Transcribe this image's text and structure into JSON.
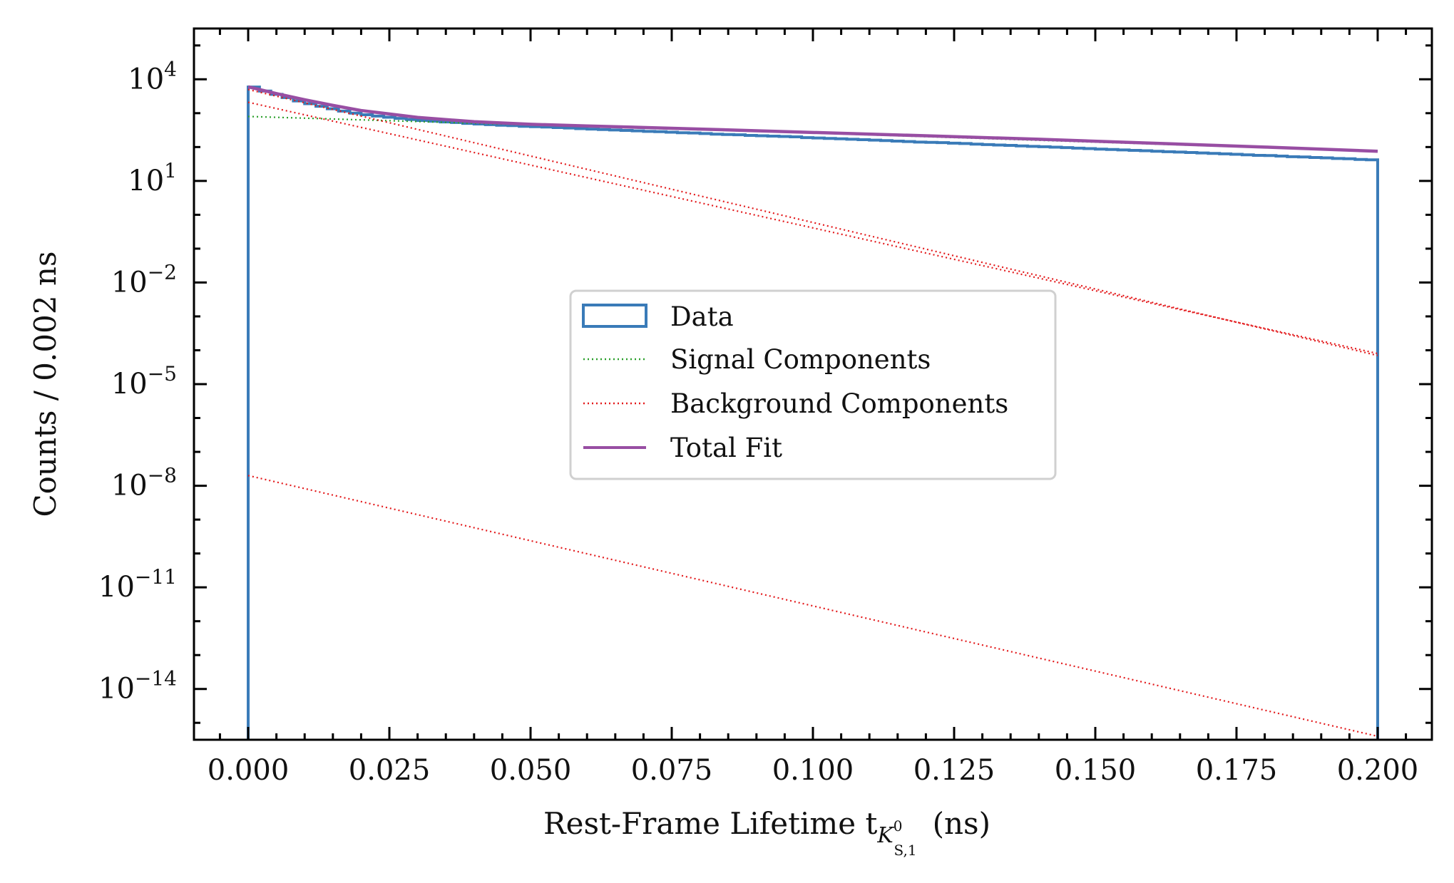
{
  "chart_data": {
    "type": "line",
    "xlabel": "Rest-Frame Lifetime t",
    "xlabel_sub": "K",
    "xlabel_subsub": "S,1",
    "xlabel_subsup": "0",
    "xlabel_unit": "(ns)",
    "ylabel": "Counts / 0.002 ns",
    "xlim": [
      -0.0096,
      0.2096
    ],
    "ylim_log10": [
      -15.5,
      5.5
    ],
    "yscale": "log",
    "grid": false,
    "legend_position": "center",
    "x_ticks": [
      "0.000",
      "0.025",
      "0.050",
      "0.075",
      "0.100",
      "0.125",
      "0.150",
      "0.175",
      "0.200"
    ],
    "y_ticks": [
      {
        "base": "10",
        "exp": "4",
        "log10": 4
      },
      {
        "base": "10",
        "exp": "1",
        "log10": 1
      },
      {
        "base": "10",
        "exp": "−2",
        "log10": -2
      },
      {
        "base": "10",
        "exp": "−5",
        "log10": -5
      },
      {
        "base": "10",
        "exp": "−8",
        "log10": -8
      },
      {
        "base": "10",
        "exp": "−11",
        "log10": -11
      },
      {
        "base": "10",
        "exp": "−14",
        "log10": -14
      }
    ],
    "legend": [
      {
        "label": "Data",
        "style": "step",
        "color": "#3a7bb8"
      },
      {
        "label": "Signal Components",
        "style": "dotted",
        "color": "#2ca02c"
      },
      {
        "label": "Background Components",
        "style": "dotted",
        "color": "#e31a1c"
      },
      {
        "label": "Total Fit",
        "style": "solid",
        "color": "#984ea3"
      }
    ],
    "data_histogram": {
      "bin_width": 0.002,
      "x_range": [
        0.0,
        0.2
      ],
      "counts": [
        5900,
        4500,
        3600,
        2900,
        2300,
        1900,
        1600,
        1350,
        1150,
        1000,
        900,
        820,
        760,
        700,
        650,
        610,
        580,
        550,
        530,
        500,
        480,
        460,
        440,
        430,
        410,
        400,
        390,
        375,
        365,
        350,
        340,
        330,
        320,
        310,
        300,
        290,
        285,
        275,
        265,
        260,
        250,
        240,
        235,
        230,
        220,
        215,
        210,
        205,
        200,
        190,
        185,
        180,
        175,
        170,
        165,
        160,
        155,
        150,
        145,
        140,
        138,
        135,
        130,
        127,
        122,
        118,
        115,
        112,
        108,
        105,
        102,
        99,
        96,
        93,
        90,
        87,
        85,
        82,
        80,
        78,
        75,
        73,
        71,
        69,
        67,
        65,
        63,
        61,
        59,
        57,
        56,
        54,
        52,
        51,
        49,
        48,
        46,
        45,
        43,
        42
      ]
    },
    "series": [
      {
        "name": "Total Fit",
        "color": "#984ea3",
        "style": "solid",
        "x": [
          0.0,
          0.005,
          0.01,
          0.015,
          0.02,
          0.03,
          0.04,
          0.05,
          0.06,
          0.08,
          0.1,
          0.12,
          0.14,
          0.16,
          0.18,
          0.2
        ],
        "y": [
          6000,
          3800,
          2500,
          1700,
          1200,
          750,
          560,
          470,
          420,
          340,
          270,
          215,
          170,
          130,
          100,
          75
        ]
      },
      {
        "color": "#2ca02c",
        "style": "dotted",
        "x": [
          0.0,
          0.05,
          0.1,
          0.15,
          0.2
        ],
        "y": [
          800,
          450,
          260,
          140,
          75
        ]
      },
      {
        "color": "#e31a1c",
        "style": "dotted",
        "x": [
          0.0,
          0.2
        ],
        "y": [
          5000,
          7e-05
        ]
      },
      {
        "color": "#e31a1c",
        "style": "dotted",
        "x": [
          0.0,
          0.2
        ],
        "y": [
          2100,
          8e-05
        ]
      },
      {
        "color": "#e31a1c",
        "style": "dotted",
        "x": [
          0.0,
          0.2
        ],
        "y": [
          2e-08,
          4e-16
        ]
      }
    ]
  }
}
